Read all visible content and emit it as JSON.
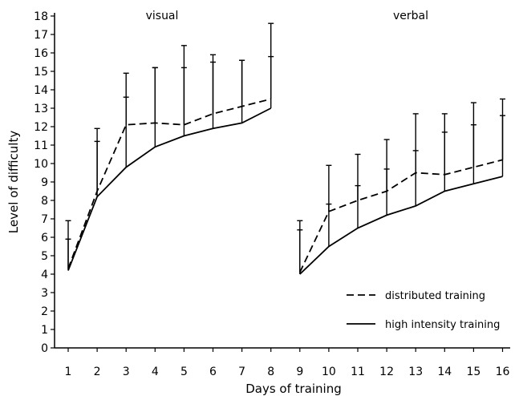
{
  "chart_data": {
    "type": "line",
    "xlabel": "Days of training",
    "ylabel": "Level of difficulty",
    "ylim": [
      0,
      18
    ],
    "xlim": [
      0.5,
      16.5
    ],
    "x_ticks": [
      1,
      2,
      3,
      4,
      5,
      6,
      7,
      8,
      9,
      10,
      11,
      12,
      13,
      14,
      15,
      16
    ],
    "y_ticks": [
      0,
      1,
      2,
      3,
      4,
      5,
      6,
      7,
      8,
      9,
      10,
      11,
      12,
      13,
      14,
      15,
      16,
      17,
      18
    ],
    "legend_position": "bottom-right",
    "panels": [
      {
        "label": "visual",
        "x": [
          1,
          2,
          3,
          4,
          5,
          6,
          7,
          8
        ],
        "series": [
          {
            "name": "distributed training",
            "style": "dashed",
            "values": [
              4.3,
              8.5,
              12.1,
              12.2,
              12.1,
              12.7,
              13.1,
              13.5
            ],
            "error_upper": [
              5.9,
              11.2,
              13.6,
              15.2,
              15.2,
              15.5,
              15.6,
              15.8
            ]
          },
          {
            "name": "high intensity training",
            "style": "solid",
            "values": [
              4.2,
              8.2,
              9.8,
              10.9,
              11.5,
              11.9,
              12.2,
              13.0
            ],
            "error_upper": [
              6.9,
              11.9,
              14.9,
              15.2,
              16.4,
              15.9,
              15.6,
              17.6
            ]
          }
        ]
      },
      {
        "label": "verbal",
        "x": [
          9,
          10,
          11,
          12,
          13,
          14,
          15,
          16
        ],
        "series": [
          {
            "name": "distributed training",
            "style": "dashed",
            "values": [
              4.1,
              7.4,
              8.0,
              8.5,
              9.5,
              9.4,
              9.8,
              10.2
            ],
            "error_upper": [
              6.4,
              7.8,
              8.8,
              9.7,
              10.7,
              11.7,
              12.1,
              12.6
            ]
          },
          {
            "name": "high intensity training",
            "style": "solid",
            "values": [
              4.0,
              5.5,
              6.5,
              7.2,
              7.7,
              8.5,
              8.9,
              9.3
            ],
            "error_upper": [
              6.9,
              9.9,
              10.5,
              11.3,
              12.7,
              12.7,
              13.3,
              13.5
            ]
          }
        ]
      }
    ],
    "legend": [
      {
        "label": "distributed training",
        "style": "dashed"
      },
      {
        "label": "high intensity training",
        "style": "solid"
      }
    ]
  }
}
